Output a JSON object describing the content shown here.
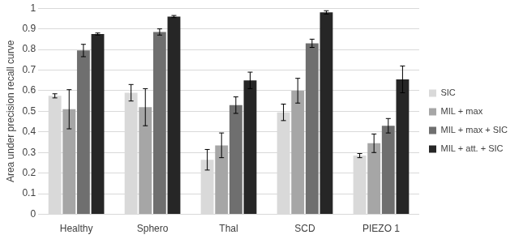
{
  "chart_data": {
    "type": "bar",
    "y_label": "Area under precision recall curve",
    "categories": [
      "Healthy",
      "Sphero",
      "Thal",
      "SCD",
      "PIEZO 1"
    ],
    "series": [
      {
        "name": "SIC",
        "color": "#d9d9d9",
        "values": [
          0.575,
          0.59,
          0.265,
          0.495,
          0.285
        ],
        "errors": [
          0.01,
          0.04,
          0.05,
          0.04,
          0.01
        ]
      },
      {
        "name": "MIL + max",
        "color": "#a6a6a6",
        "values": [
          0.51,
          0.52,
          0.335,
          0.6,
          0.345
        ],
        "errors": [
          0.095,
          0.09,
          0.06,
          0.06,
          0.045
        ]
      },
      {
        "name": "MIL + max + SIC",
        "color": "#6f6f6f",
        "values": [
          0.795,
          0.885,
          0.53,
          0.83,
          0.43
        ],
        "errors": [
          0.03,
          0.015,
          0.04,
          0.02,
          0.035
        ]
      },
      {
        "name": "MIL + att. + SIC",
        "color": "#262626",
        "values": [
          0.875,
          0.96,
          0.65,
          0.98,
          0.655
        ],
        "errors": [
          0.005,
          0.005,
          0.04,
          0.008,
          0.065
        ]
      }
    ],
    "ylim": [
      0,
      1
    ],
    "yticks": [
      0,
      0.1,
      0.2,
      0.3,
      0.4,
      0.5,
      0.6,
      0.7,
      0.8,
      0.9,
      1
    ],
    "grid": true,
    "legend": "right"
  }
}
